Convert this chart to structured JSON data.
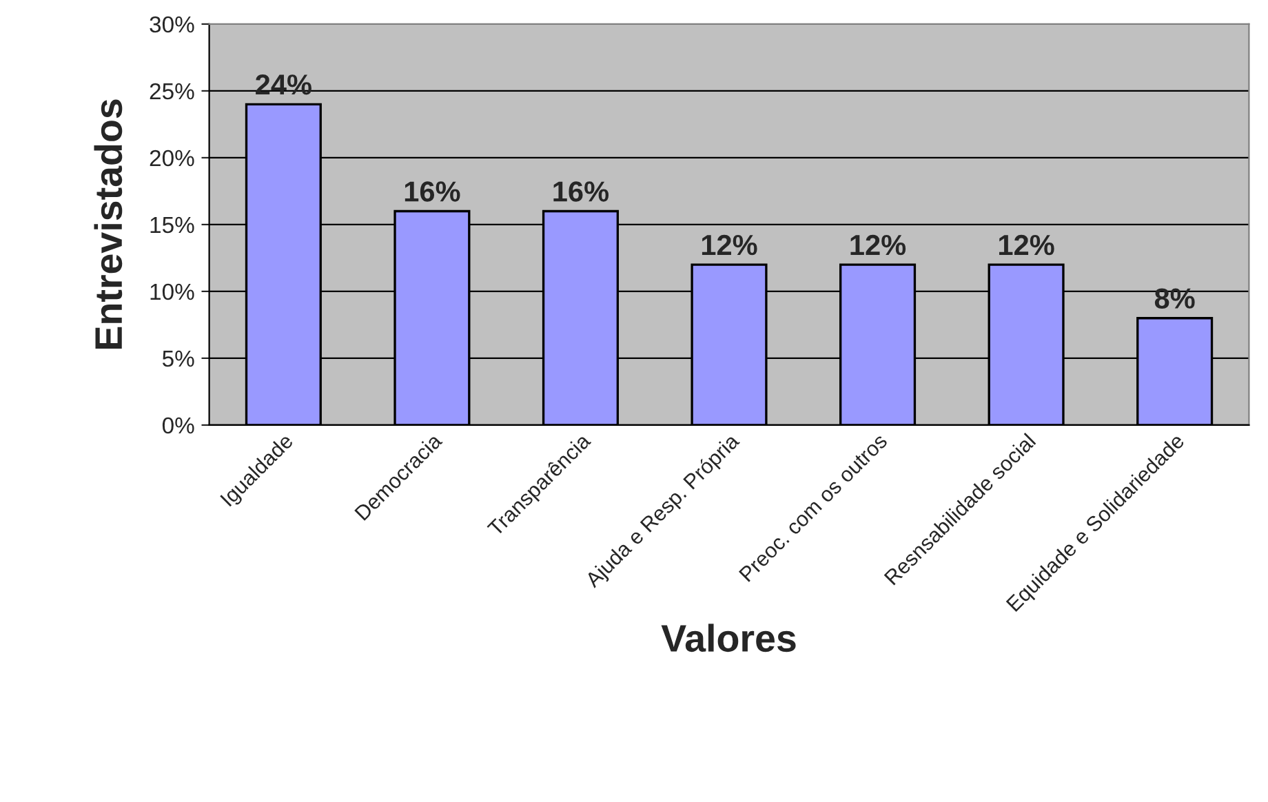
{
  "chart_data": {
    "type": "bar",
    "xlabel": "Valores",
    "ylabel": "Entrevistados",
    "categories": [
      "Igualdade",
      "Democracia",
      "Transparência",
      "Ajuda e Resp. Própria",
      "Preoc. com os outros",
      "Resnsabilidade social",
      "Equidade e Solidariedade"
    ],
    "values": [
      24,
      16,
      16,
      12,
      12,
      12,
      8
    ],
    "value_labels": [
      "24%",
      "16%",
      "16%",
      "12%",
      "12%",
      "12%",
      "8%"
    ],
    "color": "#9999ff",
    "ylim": [
      0,
      30
    ],
    "yticks": [
      {
        "value": 0,
        "label": "0%"
      },
      {
        "value": 5,
        "label": "5%"
      },
      {
        "value": 10,
        "label": "10%"
      },
      {
        "value": 15,
        "label": "15%"
      },
      {
        "value": 20,
        "label": "20%"
      },
      {
        "value": 25,
        "label": "25%"
      },
      {
        "value": 30,
        "label": "30%"
      }
    ],
    "grid": "y",
    "legend": false
  }
}
